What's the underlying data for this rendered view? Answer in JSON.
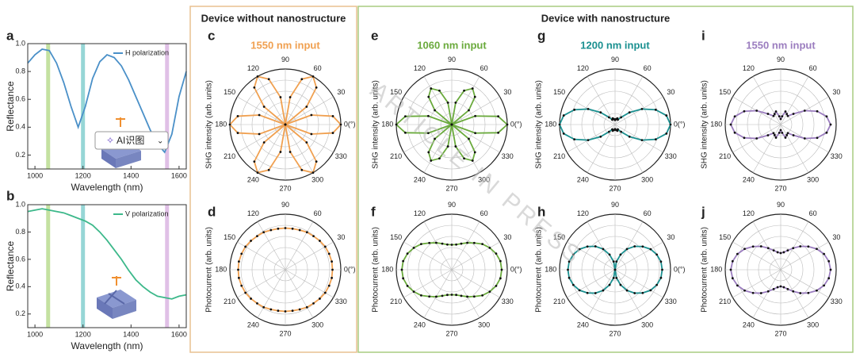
{
  "watermark": "ARTICLE IN PRESS",
  "overlay_button": "AI识图",
  "headings": [
    "Device without nanostructure",
    "Device with nanostructure"
  ],
  "chart_data": [
    {
      "type": "line",
      "panel": "a",
      "xlabel": "Wavelength (nm)",
      "ylabel": "Reflectance",
      "x": [
        970,
        1000,
        1030,
        1060,
        1090,
        1120,
        1150,
        1180,
        1210,
        1240,
        1270,
        1300,
        1330,
        1360,
        1390,
        1420,
        1450,
        1480,
        1510,
        1540,
        1570,
        1600,
        1630
      ],
      "series": [
        {
          "name": "H polarization",
          "color": "#4a90c8",
          "values": [
            0.86,
            0.92,
            0.96,
            0.95,
            0.86,
            0.72,
            0.55,
            0.4,
            0.55,
            0.75,
            0.87,
            0.92,
            0.9,
            0.84,
            0.74,
            0.62,
            0.5,
            0.38,
            0.28,
            0.22,
            0.35,
            0.62,
            0.8
          ]
        }
      ],
      "xlim": [
        970,
        1630
      ],
      "ylim": [
        0.1,
        1.0
      ],
      "xticks": [
        1000,
        1200,
        1400,
        1600
      ],
      "yticks": [
        0.2,
        0.4,
        0.6,
        0.8,
        {
          "value": 1.0,
          "label": "1.0"
        }
      ],
      "bands": [
        {
          "value": 1055,
          "color": "#b5d98a"
        },
        {
          "value": 1200,
          "color": "#7ccccc"
        },
        {
          "value": 1550,
          "color": "#d8b0e0"
        }
      ]
    },
    {
      "type": "line",
      "panel": "b",
      "xlabel": "Wavelength (nm)",
      "ylabel": "Reflectance",
      "x": [
        970,
        1000,
        1030,
        1060,
        1090,
        1120,
        1150,
        1180,
        1210,
        1240,
        1270,
        1300,
        1330,
        1360,
        1390,
        1420,
        1450,
        1480,
        1510,
        1540,
        1570,
        1600,
        1630
      ],
      "series": [
        {
          "name": "V polarization",
          "color": "#3cb88a",
          "values": [
            0.95,
            0.96,
            0.97,
            0.96,
            0.95,
            0.94,
            0.92,
            0.9,
            0.88,
            0.85,
            0.8,
            0.74,
            0.67,
            0.6,
            0.52,
            0.45,
            0.4,
            0.36,
            0.33,
            0.32,
            0.31,
            0.33,
            0.34
          ]
        }
      ],
      "xlim": [
        970,
        1630
      ],
      "ylim": [
        0.1,
        1.0
      ],
      "xticks": [
        1000,
        1200,
        1400,
        1600
      ],
      "yticks": [
        0.2,
        0.4,
        0.6,
        0.8,
        {
          "value": 1.0,
          "label": "1.0"
        }
      ],
      "bands": [
        {
          "value": 1055,
          "color": "#b5d98a"
        },
        {
          "value": 1200,
          "color": "#7ccccc"
        },
        {
          "value": 1550,
          "color": "#d8b0e0"
        }
      ]
    },
    {
      "type": "polar",
      "panel": "c",
      "title": "1550 nm input",
      "color": "#f0a050",
      "ylabel": "SHG intensity (arb. units)",
      "theta": [
        0,
        10,
        20,
        30,
        40,
        50,
        60,
        70,
        80,
        90,
        100,
        110,
        120,
        130,
        140,
        150,
        160,
        170,
        180,
        190,
        200,
        210,
        220,
        230,
        240,
        250,
        260,
        270,
        280,
        290,
        300,
        310,
        320,
        330,
        340,
        350
      ],
      "values": [
        1,
        0.87,
        0.5,
        0,
        0.5,
        0.87,
        1,
        0.87,
        0.5,
        0,
        0.5,
        0.87,
        1,
        0.87,
        0.5,
        0,
        0.5,
        0.87,
        1,
        0.87,
        0.5,
        0,
        0.5,
        0.87,
        1,
        0.87,
        0.5,
        0,
        0.5,
        0.87,
        1,
        0.87,
        0.5,
        0,
        0.5,
        0.87
      ],
      "angle_ticks": [
        {
          "value": 0,
          "label": "0(°)"
        },
        30,
        60,
        90,
        120,
        150,
        180,
        210,
        240,
        270,
        300,
        330
      ]
    },
    {
      "type": "polar",
      "panel": "d",
      "color": "#f0a050",
      "ylabel": "Photocurrent (arb. units)",
      "theta": [
        0,
        10,
        20,
        30,
        40,
        50,
        60,
        70,
        80,
        90,
        100,
        110,
        120,
        130,
        140,
        150,
        160,
        170,
        180,
        190,
        200,
        210,
        220,
        230,
        240,
        250,
        260,
        270,
        280,
        290,
        300,
        310,
        320,
        330,
        340,
        350
      ],
      "values": [
        0.85,
        0.85,
        0.84,
        0.83,
        0.81,
        0.79,
        0.78,
        0.76,
        0.75,
        0.75,
        0.75,
        0.76,
        0.78,
        0.79,
        0.81,
        0.83,
        0.84,
        0.85,
        0.85,
        0.85,
        0.84,
        0.83,
        0.81,
        0.79,
        0.78,
        0.76,
        0.75,
        0.75,
        0.75,
        0.76,
        0.78,
        0.79,
        0.81,
        0.83,
        0.84,
        0.85
      ],
      "angle_ticks": [
        {
          "value": 0,
          "label": "0(°)"
        },
        30,
        60,
        90,
        120,
        150,
        180,
        210,
        240,
        270,
        300,
        330
      ]
    },
    {
      "type": "polar",
      "panel": "e",
      "title": "1060 nm input",
      "color": "#6aaa3c",
      "ylabel": "SHG intensity (arb. units)",
      "theta": [
        0,
        10,
        20,
        30,
        40,
        50,
        60,
        70,
        80,
        90,
        100,
        110,
        120,
        130,
        140,
        150,
        160,
        170,
        180,
        190,
        200,
        210,
        220,
        230,
        240,
        250,
        260,
        270,
        280,
        290,
        300,
        310,
        320,
        330,
        340,
        350
      ],
      "values": [
        1,
        0.85,
        0.45,
        0,
        0.4,
        0.65,
        0.75,
        0.65,
        0.4,
        0,
        0.4,
        0.65,
        0.75,
        0.65,
        0.4,
        0,
        0.45,
        0.85,
        1,
        0.85,
        0.45,
        0,
        0.4,
        0.65,
        0.75,
        0.65,
        0.4,
        0,
        0.4,
        0.65,
        0.75,
        0.65,
        0.4,
        0,
        0.45,
        0.85
      ],
      "angle_ticks": [
        {
          "value": 0,
          "label": "0(°)"
        },
        30,
        60,
        90,
        120,
        150,
        180,
        210,
        240,
        270,
        300,
        330
      ]
    },
    {
      "type": "polar",
      "panel": "f",
      "color": "#6aaa3c",
      "ylabel": "Photocurrent (arb. units)",
      "theta": [
        0,
        10,
        20,
        30,
        40,
        50,
        60,
        70,
        80,
        90,
        100,
        110,
        120,
        130,
        140,
        150,
        160,
        170,
        180,
        190,
        200,
        210,
        220,
        230,
        240,
        250,
        260,
        270,
        280,
        290,
        300,
        310,
        320,
        330,
        340,
        350
      ],
      "values": [
        0.9,
        0.89,
        0.85,
        0.79,
        0.72,
        0.63,
        0.56,
        0.5,
        0.46,
        0.45,
        0.46,
        0.5,
        0.56,
        0.63,
        0.72,
        0.79,
        0.85,
        0.89,
        0.9,
        0.89,
        0.85,
        0.79,
        0.72,
        0.63,
        0.56,
        0.5,
        0.46,
        0.45,
        0.46,
        0.5,
        0.56,
        0.63,
        0.72,
        0.79,
        0.85,
        0.89
      ],
      "angle_ticks": [
        {
          "value": 0,
          "label": "0(°)"
        },
        30,
        60,
        90,
        120,
        150,
        180,
        210,
        240,
        270,
        300,
        330
      ]
    },
    {
      "type": "polar",
      "panel": "g",
      "title": "1200 nm input",
      "color": "#1a9090",
      "ylabel": "SHG intensity (arb. units)",
      "theta": [
        0,
        10,
        20,
        30,
        40,
        50,
        60,
        70,
        80,
        90,
        100,
        110,
        120,
        130,
        140,
        150,
        160,
        170,
        180,
        190,
        200,
        210,
        220,
        230,
        240,
        250,
        260,
        270,
        280,
        290,
        300,
        310,
        320,
        330,
        340,
        350
      ],
      "values": [
        1,
        0.94,
        0.78,
        0.56,
        0.34,
        0.17,
        0.1,
        0.12,
        0.1,
        0.08,
        0.1,
        0.12,
        0.1,
        0.17,
        0.34,
        0.56,
        0.78,
        0.94,
        1,
        0.94,
        0.78,
        0.56,
        0.34,
        0.17,
        0.1,
        0.12,
        0.1,
        0.08,
        0.1,
        0.12,
        0.1,
        0.17,
        0.34,
        0.56,
        0.78,
        0.94
      ],
      "angle_ticks": [
        {
          "value": 0,
          "label": "0(°)"
        },
        30,
        60,
        90,
        120,
        150,
        180,
        210,
        240,
        270,
        300,
        330
      ]
    },
    {
      "type": "polar",
      "panel": "h",
      "color": "#1a9090",
      "ylabel": "Photocurrent (arb. units)",
      "theta": [
        0,
        10,
        20,
        30,
        40,
        50,
        60,
        70,
        80,
        90,
        100,
        110,
        120,
        130,
        140,
        150,
        160,
        170,
        180,
        190,
        200,
        210,
        220,
        230,
        240,
        250,
        260,
        270,
        280,
        290,
        300,
        310,
        320,
        330,
        340,
        350
      ],
      "values": [
        0.85,
        0.84,
        0.8,
        0.74,
        0.65,
        0.55,
        0.43,
        0.29,
        0.15,
        0,
        0.15,
        0.29,
        0.43,
        0.55,
        0.65,
        0.74,
        0.8,
        0.84,
        0.85,
        0.84,
        0.8,
        0.74,
        0.65,
        0.55,
        0.43,
        0.29,
        0.15,
        0,
        0.15,
        0.29,
        0.43,
        0.55,
        0.65,
        0.74,
        0.8,
        0.84
      ],
      "angle_ticks": [
        {
          "value": 0,
          "label": "0(°)"
        },
        30,
        60,
        90,
        120,
        150,
        180,
        210,
        240,
        270,
        300,
        330
      ]
    },
    {
      "type": "polar",
      "panel": "i",
      "title": "1550 nm input",
      "color": "#9b7dbf",
      "ylabel": "SHG intensity (arb. units)",
      "theta": [
        0,
        10,
        20,
        30,
        40,
        50,
        60,
        70,
        80,
        90,
        100,
        110,
        120,
        130,
        140,
        150,
        160,
        170,
        180,
        190,
        200,
        210,
        220,
        230,
        240,
        250,
        260,
        270,
        280,
        290,
        300,
        310,
        320,
        330,
        340,
        350
      ],
      "values": [
        0.9,
        0.84,
        0.7,
        0.5,
        0.3,
        0.2,
        0.22,
        0.25,
        0.15,
        0.1,
        0.15,
        0.25,
        0.22,
        0.2,
        0.3,
        0.5,
        0.7,
        0.84,
        0.9,
        0.84,
        0.7,
        0.5,
        0.3,
        0.2,
        0.22,
        0.25,
        0.15,
        0.1,
        0.15,
        0.25,
        0.22,
        0.2,
        0.3,
        0.5,
        0.7,
        0.84
      ],
      "angle_ticks": [
        30,
        60,
        90,
        120,
        150,
        180,
        210,
        240,
        270,
        300,
        330
      ]
    },
    {
      "type": "polar",
      "panel": "j",
      "color": "#9b7dbf",
      "ylabel": "Photocurrent (arb. units)",
      "theta": [
        0,
        10,
        20,
        30,
        40,
        50,
        60,
        70,
        80,
        90,
        100,
        110,
        120,
        130,
        140,
        150,
        160,
        170,
        180,
        190,
        200,
        210,
        220,
        230,
        240,
        250,
        260,
        270,
        280,
        290,
        300,
        310,
        320,
        330,
        340,
        350
      ],
      "values": [
        0.9,
        0.88,
        0.83,
        0.75,
        0.65,
        0.55,
        0.45,
        0.37,
        0.32,
        0.3,
        0.32,
        0.37,
        0.45,
        0.55,
        0.65,
        0.75,
        0.83,
        0.88,
        0.9,
        0.88,
        0.83,
        0.75,
        0.65,
        0.55,
        0.45,
        0.37,
        0.32,
        0.3,
        0.32,
        0.37,
        0.45,
        0.55,
        0.65,
        0.75,
        0.83,
        0.88
      ],
      "angle_ticks": [
        30,
        60,
        90,
        120,
        150,
        180,
        210,
        240,
        270,
        300,
        330
      ]
    }
  ]
}
